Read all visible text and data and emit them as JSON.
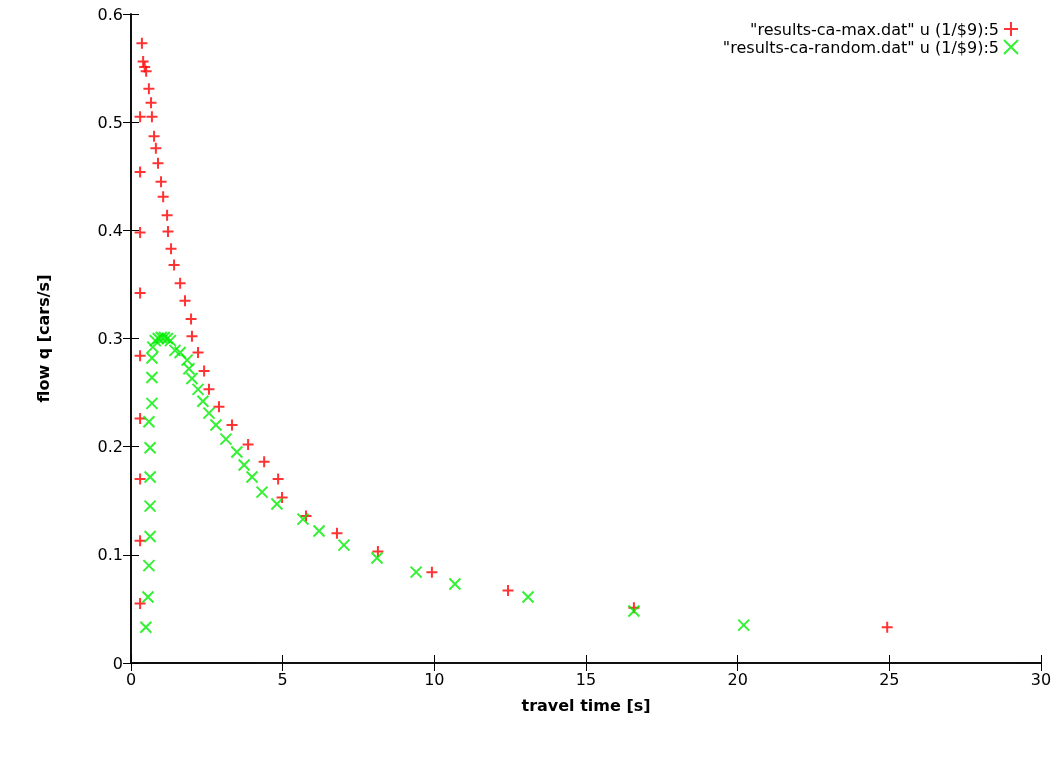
{
  "chart_data": {
    "type": "scatter",
    "xlabel": "travel time [s]",
    "ylabel": "flow q [cars/s]",
    "xlim": [
      0,
      30
    ],
    "xticks": [
      0,
      5,
      10,
      15,
      20,
      25,
      30
    ],
    "ylim": [
      0,
      0.6
    ],
    "yticks": [
      0,
      0.1,
      0.2,
      0.3,
      0.4,
      0.5,
      0.6
    ],
    "grid": false,
    "legend": "top right",
    "series": [
      {
        "name": "\"results-ca-max.dat\" u (1/$9):5",
        "color": "#ff0000",
        "marker": "plus",
        "x": [
          0.3,
          0.3,
          0.3,
          0.3,
          0.3,
          0.3,
          0.3,
          0.3,
          0.3,
          0.36,
          0.4,
          0.45,
          0.5,
          0.59,
          0.66,
          0.69,
          0.76,
          0.82,
          0.89,
          0.99,
          1.06,
          1.19,
          1.22,
          1.32,
          1.42,
          1.62,
          1.78,
          1.98,
          2.01,
          2.21,
          2.41,
          2.57,
          2.9,
          3.33,
          3.86,
          4.39,
          4.85,
          4.98,
          5.77,
          6.79,
          8.14,
          9.92,
          12.43,
          16.58,
          24.93
        ],
        "values": [
          0.055,
          0.113,
          0.17,
          0.226,
          0.284,
          0.342,
          0.398,
          0.454,
          0.505,
          0.573,
          0.556,
          0.551,
          0.547,
          0.531,
          0.518,
          0.505,
          0.487,
          0.476,
          0.462,
          0.445,
          0.431,
          0.414,
          0.399,
          0.383,
          0.368,
          0.351,
          0.335,
          0.318,
          0.302,
          0.287,
          0.27,
          0.253,
          0.237,
          0.22,
          0.202,
          0.186,
          0.17,
          0.153,
          0.136,
          0.12,
          0.103,
          0.084,
          0.067,
          0.051,
          0.033
        ]
      },
      {
        "name": "\"results-ca-random.dat\" u (1/$9):5",
        "color": "#00ee00",
        "marker": "cross",
        "x": [
          0.49,
          0.56,
          0.59,
          0.63,
          0.63,
          0.63,
          0.63,
          0.59,
          0.69,
          0.69,
          0.69,
          0.72,
          0.8,
          0.9,
          1.0,
          1.1,
          1.2,
          1.3,
          1.45,
          1.62,
          1.85,
          1.91,
          2.01,
          2.21,
          2.37,
          2.57,
          2.8,
          3.13,
          3.49,
          3.73,
          3.99,
          4.32,
          4.81,
          5.67,
          6.2,
          7.02,
          8.11,
          9.4,
          10.68,
          13.09,
          16.58,
          20.2
        ],
        "values": [
          0.033,
          0.061,
          0.09,
          0.117,
          0.145,
          0.172,
          0.199,
          0.223,
          0.24,
          0.264,
          0.282,
          0.292,
          0.298,
          0.3,
          0.301,
          0.301,
          0.3,
          0.298,
          0.289,
          0.287,
          0.28,
          0.272,
          0.263,
          0.253,
          0.242,
          0.231,
          0.22,
          0.207,
          0.195,
          0.183,
          0.172,
          0.158,
          0.147,
          0.133,
          0.122,
          0.109,
          0.097,
          0.084,
          0.073,
          0.061,
          0.048,
          0.035
        ]
      }
    ]
  }
}
